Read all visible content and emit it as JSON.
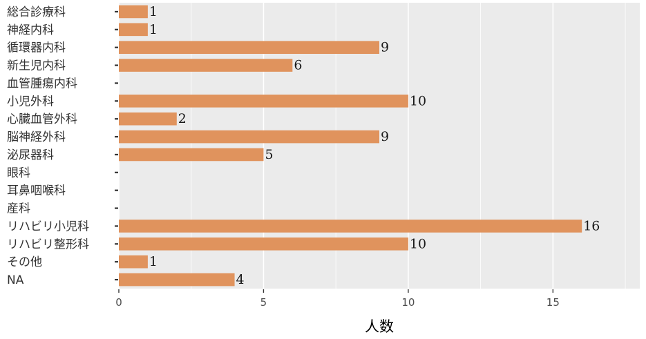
{
  "chart_data": {
    "type": "bar",
    "orientation": "horizontal",
    "categories": [
      "総合診療科",
      "神経内科",
      "循環器内科",
      "新生児内科",
      "血管腫瘍内科",
      "小児外科",
      "心臓血管外科",
      "脳神経外科",
      "泌尿器科",
      "眼科",
      "耳鼻咽喉科",
      "産科",
      "リハビリ小児科",
      "リハビリ整形科",
      "その他",
      "NA"
    ],
    "values": [
      1,
      1,
      9,
      6,
      null,
      10,
      2,
      9,
      5,
      null,
      null,
      null,
      16,
      10,
      1,
      4
    ],
    "data_labels": [
      "1",
      "1",
      "9",
      "6",
      "",
      "10",
      "2",
      "9",
      "5",
      "",
      "",
      "",
      "16",
      "10",
      "1",
      "4"
    ],
    "xlabel": "人数",
    "ylabel": "",
    "xlim": [
      0,
      18
    ],
    "xticks": [
      0,
      5,
      10,
      15
    ],
    "xtick_labels": [
      "0",
      "5",
      "10",
      "15"
    ],
    "grid": true,
    "colors": {
      "bar": "#e0935d",
      "panel": "#ebebeb",
      "grid": "#ffffff"
    }
  }
}
